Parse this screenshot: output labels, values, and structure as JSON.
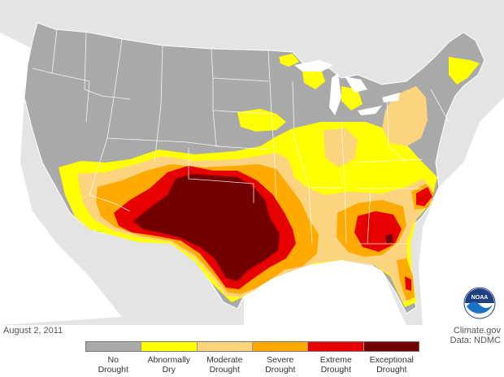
{
  "map": {
    "date": "August 2, 2011",
    "credit_line1": "Climate.gov",
    "credit_line2": "Data: NDMC",
    "logo_text": "NOAA",
    "colors": {
      "background": "#ffffff",
      "land_outside": "#e4e4e4",
      "water": "#ffffff",
      "state_fill": "#a9a9a9",
      "state_border": "#ffffff",
      "no_drought": "#a9a9a9",
      "abnormally_dry": "#ffff00",
      "moderate": "#fcd37f",
      "severe": "#ffaa00",
      "extreme": "#e60000",
      "exceptional": "#730000"
    }
  },
  "legend": [
    {
      "label": "No\nDrought",
      "color": "#a9a9a9"
    },
    {
      "label": "Abnormally\nDry",
      "color": "#ffff00"
    },
    {
      "label": "Moderate\nDrought",
      "color": "#fcd37f"
    },
    {
      "label": "Severe\nDrought",
      "color": "#ffaa00"
    },
    {
      "label": "Extreme\nDrought",
      "color": "#e60000"
    },
    {
      "label": "Exceptional\nDrought",
      "color": "#730000"
    }
  ]
}
